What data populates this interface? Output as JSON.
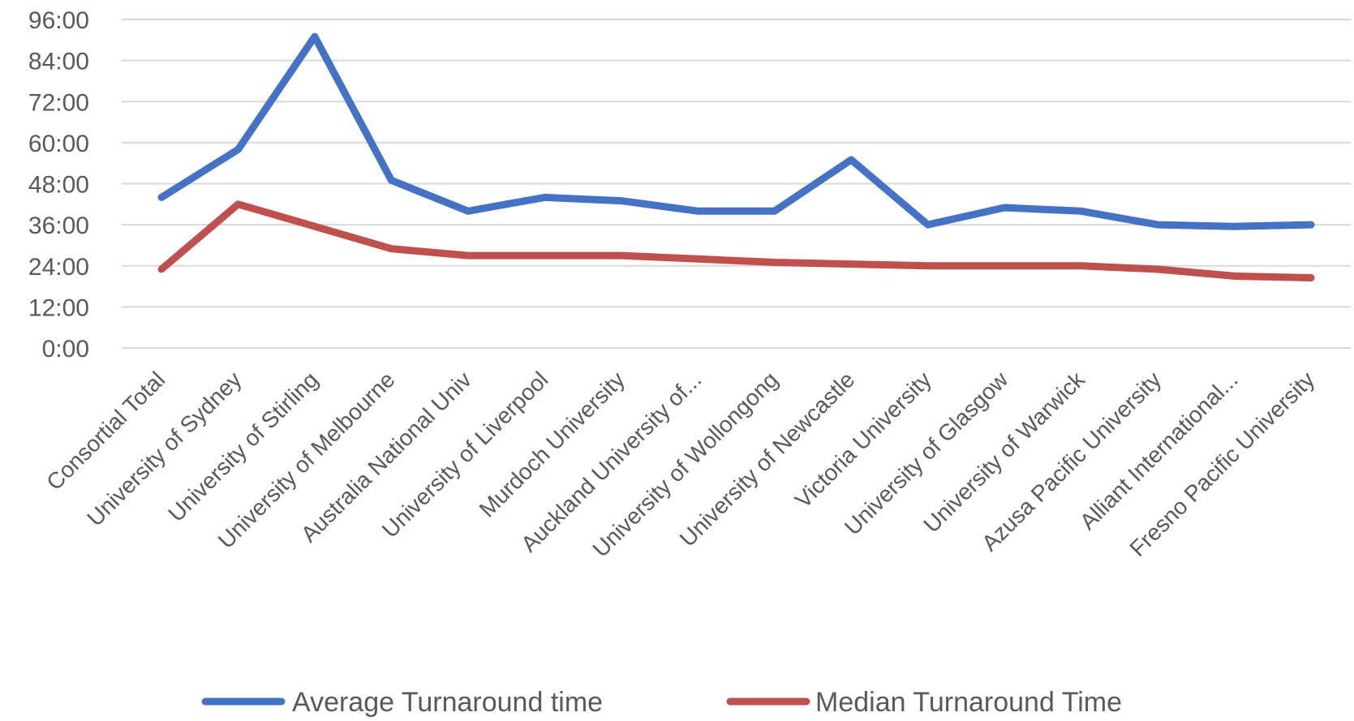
{
  "chart_data": {
    "type": "line",
    "categories": [
      "Consortial Total",
      "University of Sydney",
      "University of Stirling",
      "University of Melbourne",
      "Australia National Univ",
      "University of Liverpool",
      "Murdoch University",
      "Auckland University of...",
      "University of Wollongong",
      "University of Newcastle",
      "Victoria University",
      "University of Glasgow",
      "University of Warwick",
      "Azusa Pacific University",
      "Alliant International...",
      "Fresno Pacific University"
    ],
    "series": [
      {
        "name": "Average Turnaround time",
        "color": "#4472C4",
        "values": [
          44,
          58,
          91,
          49,
          40,
          44,
          43,
          40,
          40,
          55,
          36,
          41,
          40,
          36,
          35.5,
          36
        ]
      },
      {
        "name": "Median Turnaround Time",
        "color": "#C0504D",
        "values": [
          23,
          42,
          35.5,
          29,
          27,
          27,
          27,
          26,
          25,
          24.5,
          24,
          24,
          24,
          23,
          21,
          20.5
        ]
      }
    ],
    "y_unit": "hours (h:mm)",
    "ylim": [
      0,
      96
    ],
    "yticks": [
      "0:00",
      "12:00",
      "24:00",
      "36:00",
      "48:00",
      "60:00",
      "72:00",
      "84:00",
      "96:00"
    ],
    "ytick_values": [
      0,
      12,
      24,
      36,
      48,
      60,
      72,
      84,
      96
    ],
    "grid": true,
    "legend_position": "bottom",
    "title": "",
    "xlabel": "",
    "ylabel": ""
  }
}
